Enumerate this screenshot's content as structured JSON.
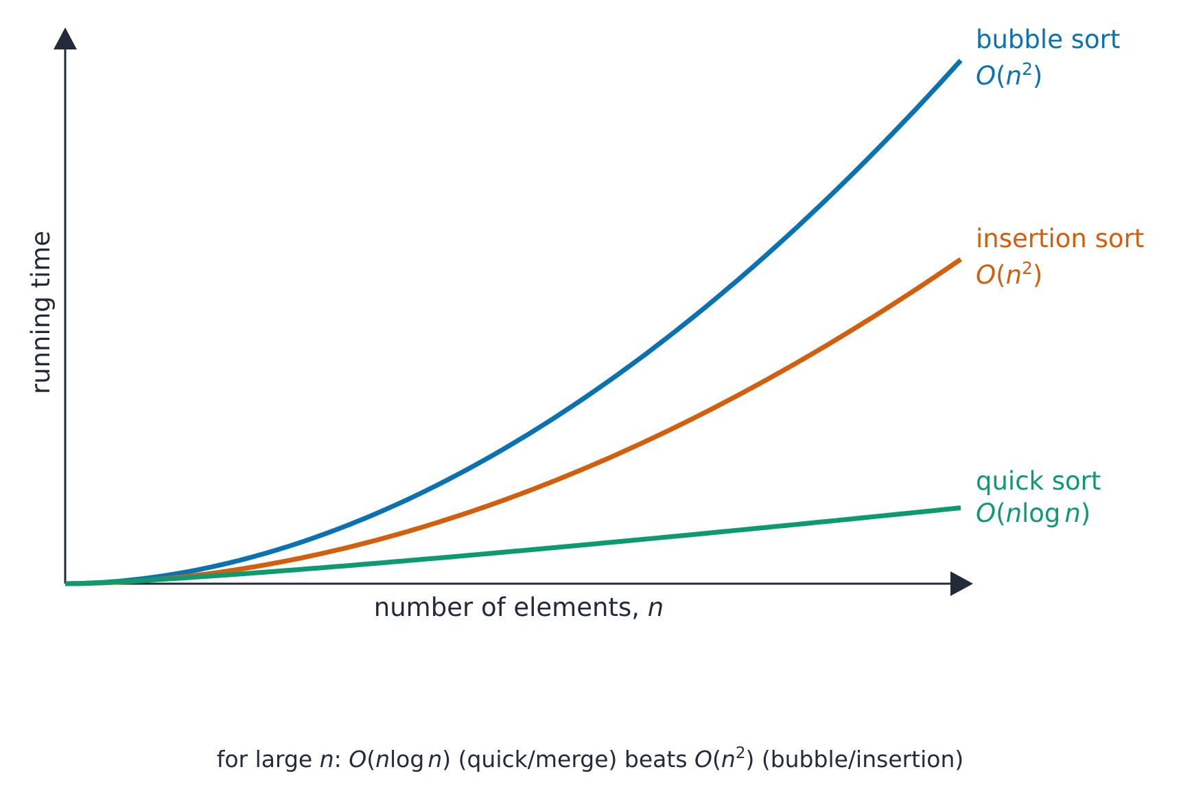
{
  "chart_data": {
    "type": "line",
    "x_label_text": "number of elements, ",
    "x_label_var": "n",
    "y_label": "running time",
    "ticks_shown": false,
    "grid": false,
    "axis_color": "#232b3a",
    "series": [
      {
        "key": "bubble",
        "name": "bubble sort",
        "complexity": "O(n²)",
        "color": "#0a72b0",
        "shape": "n^2",
        "relative_value_at_max_n": 1.0
      },
      {
        "key": "insertion",
        "name": "insertion sort",
        "complexity": "O(n²)",
        "color": "#d25f0e",
        "shape": "n^2",
        "relative_value_at_max_n": 0.62
      },
      {
        "key": "quick",
        "name": "quick sort",
        "complexity": "O(n log n)",
        "color": "#0d9a6e",
        "shape": "n log n",
        "relative_value_at_max_n": 0.145
      }
    ],
    "footnote": "for large n: O(n log n) (quick/merge) beats O(n²) (bubble/insertion)"
  }
}
